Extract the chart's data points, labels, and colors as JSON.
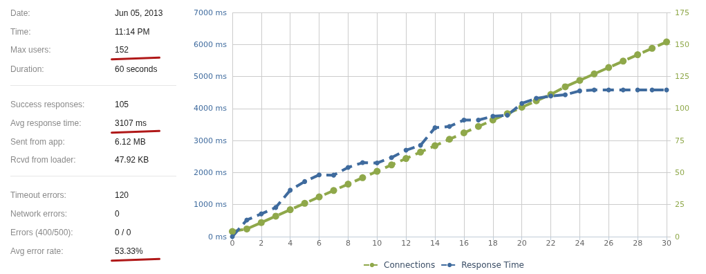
{
  "chart_data": [
    {
      "type": "other",
      "annotations": [
        "Date:",
        "Jun 05, 2013",
        "Time:",
        "11:14 PM",
        "Max users:",
        "152",
        "Duration:",
        "60 seconds",
        "Success responses:",
        "105",
        "Avg response time:",
        "3107 ms",
        "Sent from app:",
        "6.12 MB",
        "Rcvd from loader:",
        "47.92 KB",
        "Timeout errors:",
        "120",
        "Network errors:",
        "0",
        "Errors (400/500):",
        "0 / 0",
        "Avg error rate:",
        "53.33%"
      ]
    },
    {
      "type": "line",
      "x": [
        0,
        1,
        2,
        3,
        4,
        5,
        6,
        7,
        8,
        9,
        10,
        11,
        12,
        13,
        14,
        15,
        16,
        17,
        18,
        19,
        20,
        21,
        22,
        23,
        24,
        25,
        26,
        27,
        28,
        29,
        30
      ],
      "series": [
        {
          "name": "Connections",
          "color": "#8fa84a",
          "axis": "y2",
          "values": [
            4,
            6,
            11,
            16,
            21,
            26,
            31,
            36,
            41,
            46,
            51,
            56,
            61,
            66,
            71,
            76,
            81,
            86,
            91,
            96,
            101,
            106,
            111,
            117,
            122,
            127,
            132,
            137,
            142,
            147,
            152
          ]
        },
        {
          "name": "Response Time",
          "color": "#3f6b9e",
          "values": [
            0,
            520,
            710,
            910,
            1450,
            1720,
            1930,
            1920,
            2160,
            2310,
            2300,
            2470,
            2700,
            2850,
            3400,
            3440,
            3640,
            3640,
            3760,
            3790,
            4160,
            4320,
            4390,
            4430,
            4550,
            4580,
            4580,
            4580,
            4580,
            4580,
            4580
          ]
        }
      ],
      "xlim": [
        0,
        30
      ],
      "xticks": [
        0,
        2,
        4,
        6,
        8,
        10,
        12,
        14,
        16,
        18,
        20,
        22,
        24,
        26,
        28,
        30
      ],
      "ylim": [
        0,
        7000
      ],
      "yticks": [
        {
          "value": 0,
          "label": "0 ms"
        },
        {
          "value": 1000,
          "label": "1000 ms"
        },
        {
          "value": 2000,
          "label": "2000 ms"
        },
        {
          "value": 3000,
          "label": "3000 ms"
        },
        {
          "value": 4000,
          "label": "4000 ms"
        },
        {
          "value": 5000,
          "label": "5000 ms"
        },
        {
          "value": 6000,
          "label": "6000 ms"
        },
        {
          "value": 7000,
          "label": "7000 ms"
        }
      ],
      "y2lim": [
        0,
        175
      ],
      "y2ticks": [
        0,
        25,
        50,
        75,
        100,
        125,
        150,
        175
      ],
      "grid": true,
      "legend": "bottom",
      "marker": "circle",
      "line_style": "dashed"
    }
  ]
}
